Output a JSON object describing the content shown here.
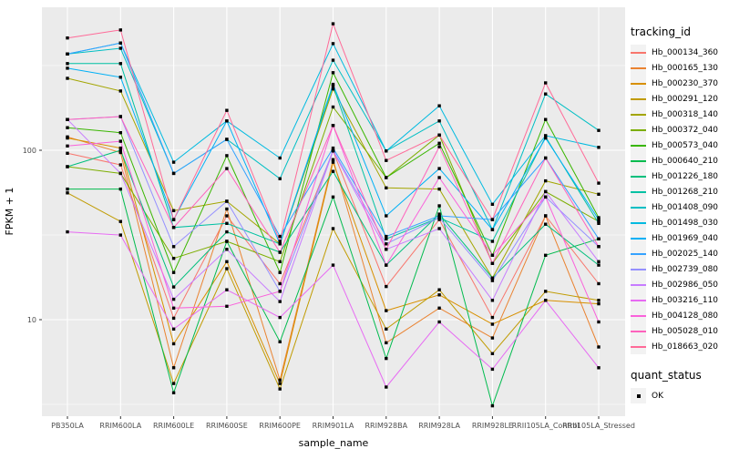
{
  "figure": {
    "background": "#FFFFFF",
    "panel_background": "#EBEBEB",
    "grid_color": "#FFFFFF",
    "tick_label_color": "#4D4D4D",
    "point_color": "#000000"
  },
  "chart_data": {
    "type": "line",
    "title": "",
    "xlabel": "sample_name",
    "ylabel": "FPKM + 1",
    "y_scale": "log10",
    "grid": true,
    "legend_position": "right",
    "point_shape": "square",
    "point_color": "#000000",
    "y_ticks": [
      "100",
      "10"
    ],
    "y_tick_values": [
      100,
      10
    ],
    "y_minor_values": [
      316.23,
      31.62,
      3.162
    ],
    "ylim": [
      2.7,
      700
    ],
    "categories": [
      "PB350LA",
      "RRIM600LA",
      "RRIM600LE",
      "RRIM600SE",
      "RRIM600PE",
      "RRIM901LA",
      "RRIM928BA",
      "RRIM928LA",
      "RRIM928LE",
      "RRII105LA_Control",
      "RRII105LA_Stressed"
    ],
    "series": [
      {
        "name": "Hb_000134_360",
        "color": "#F8766D",
        "values": [
          96,
          82,
          10.2,
          41,
          16.3,
          99,
          15.7,
          39,
          10.3,
          41,
          16.3
        ]
      },
      {
        "name": "Hb_000165_130",
        "color": "#EA8331",
        "values": [
          120,
          97,
          5.2,
          45,
          4.4,
          88,
          7.3,
          11.7,
          7.8,
          41,
          6.9
        ]
      },
      {
        "name": "Hb_000230_370",
        "color": "#D89000",
        "values": [
          118,
          103,
          7.2,
          22,
          4.2,
          85,
          11.3,
          14,
          9.4,
          13,
          12.4
        ]
      },
      {
        "name": "Hb_000291_120",
        "color": "#C09B00",
        "values": [
          56,
          38,
          4.2,
          20,
          3.9,
          34.5,
          8.8,
          15,
          6.3,
          14.7,
          13
        ]
      },
      {
        "name": "Hb_000318_140",
        "color": "#A3A500",
        "values": [
          266,
          224,
          44,
          50,
          28,
          230,
          60,
          59,
          17.6,
          66,
          55
        ]
      },
      {
        "name": "Hb_000372_040",
        "color": "#7CAE00",
        "values": [
          80,
          73,
          23,
          29,
          22,
          180,
          69,
          123,
          21.5,
          57,
          38
        ]
      },
      {
        "name": "Hb_000573_040",
        "color": "#39B600",
        "values": [
          136,
          127,
          19,
          93,
          19,
          287,
          69,
          110,
          24,
          152,
          40
        ]
      },
      {
        "name": "Hb_000640_210",
        "color": "#00BB4E",
        "values": [
          59,
          59,
          3.7,
          29,
          7.4,
          53,
          5.9,
          47,
          3.1,
          24,
          30
        ]
      },
      {
        "name": "Hb_001226_180",
        "color": "#00BF7D",
        "values": [
          80,
          100,
          15.6,
          33,
          25,
          75,
          21,
          42,
          17.6,
          36.6,
          21
        ]
      },
      {
        "name": "Hb_001268_210",
        "color": "#00C1A3",
        "values": [
          325,
          325,
          35,
          37,
          28,
          240,
          30,
          40,
          29,
          120,
          37
        ]
      },
      {
        "name": "Hb_001408_090",
        "color": "#00BFC4",
        "values": [
          370,
          400,
          73,
          116,
          68,
          340,
          99,
          149,
          34,
          215,
          131
        ]
      },
      {
        "name": "Hb_001498_030",
        "color": "#00BAE0",
        "values": [
          370,
          430,
          85,
          149,
          90,
          426,
          99,
          183,
          48,
          122,
          104
        ]
      },
      {
        "name": "Hb_001969_040",
        "color": "#00B0F6",
        "values": [
          305,
          270,
          39,
          149,
          28,
          245,
          41,
          78,
          34,
          118,
          39
        ]
      },
      {
        "name": "Hb_002025_140",
        "color": "#35A2FF",
        "values": [
          370,
          430,
          73,
          116,
          31,
          103,
          31,
          41,
          39,
          90,
          30
        ]
      },
      {
        "name": "Hb_002739_080",
        "color": "#9590FF",
        "values": [
          152,
          158,
          27,
          50,
          14.7,
          100,
          28,
          40,
          17,
          53,
          27
        ]
      },
      {
        "name": "Hb_002986_050",
        "color": "#C77CFF",
        "values": [
          152,
          73,
          13.2,
          26,
          12.8,
          99,
          26,
          34.5,
          13,
          57,
          22
        ]
      },
      {
        "name": "Hb_003216_110",
        "color": "#E76BF3",
        "values": [
          33,
          31.6,
          8.8,
          15,
          10.3,
          21,
          4,
          9.7,
          5.1,
          13,
          5.2
        ]
      },
      {
        "name": "Hb_004128_080",
        "color": "#FA62DB",
        "values": [
          106,
          113,
          11.7,
          12,
          14.7,
          140,
          21,
          69,
          24,
          53,
          9.7
        ]
      },
      {
        "name": "Hb_005028_010",
        "color": "#FF62BC",
        "values": [
          152,
          158,
          35,
          78,
          25,
          140,
          26,
          105,
          21.5,
          90,
          27
        ]
      },
      {
        "name": "Hb_018663_020",
        "color": "#FF6A98",
        "values": [
          460,
          513,
          39,
          172,
          29,
          558,
          87,
          123,
          39,
          250,
          64
        ]
      }
    ]
  },
  "legend": {
    "tracking_title": "tracking_id",
    "quant_title": "quant_status",
    "quant_items": [
      {
        "label": "OK",
        "symbol": "black-square"
      }
    ]
  }
}
